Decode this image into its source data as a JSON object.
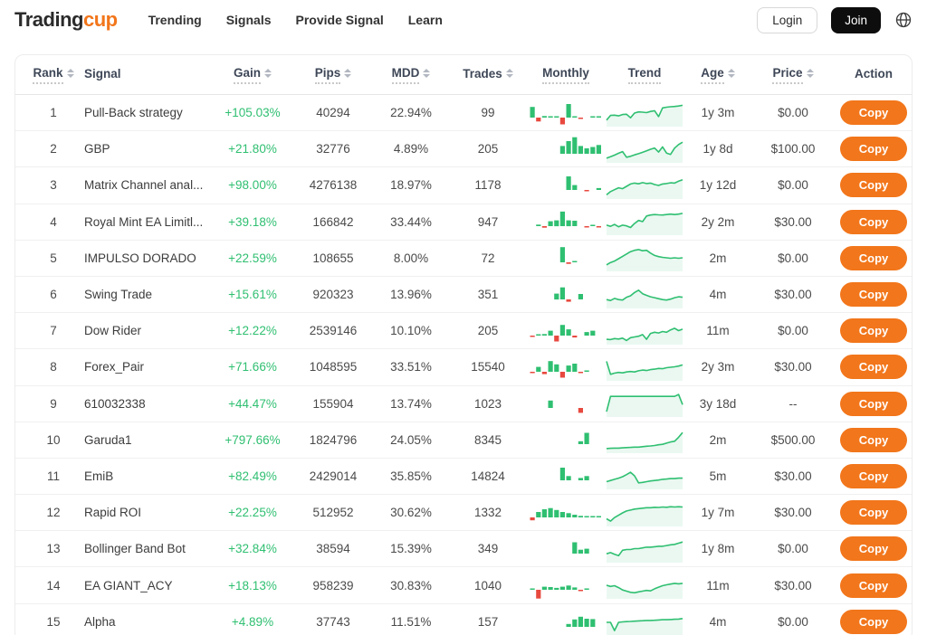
{
  "colors": {
    "accent_orange": "#f2761b",
    "green": "#2fbf71",
    "red": "#e8493f",
    "join_bg": "#0d0d0d"
  },
  "navbar": {
    "brand": {
      "part1": "Trading",
      "part2": "cup"
    },
    "items": [
      {
        "label": "Trending"
      },
      {
        "label": "Signals"
      },
      {
        "label": "Provide Signal"
      },
      {
        "label": "Learn"
      }
    ],
    "login_label": "Login",
    "join_label": "Join"
  },
  "table": {
    "columns": [
      {
        "key": "rank",
        "label": "Rank",
        "sortable": true,
        "underlined": true
      },
      {
        "key": "signal",
        "label": "Signal",
        "sortable": false,
        "underlined": false
      },
      {
        "key": "gain",
        "label": "Gain",
        "sortable": true,
        "underlined": true
      },
      {
        "key": "pips",
        "label": "Pips",
        "sortable": true,
        "underlined": true
      },
      {
        "key": "mdd",
        "label": "MDD",
        "sortable": true,
        "underlined": true
      },
      {
        "key": "trades",
        "label": "Trades",
        "sortable": true,
        "underlined": false
      },
      {
        "key": "monthly",
        "label": "Monthly",
        "sortable": false,
        "underlined": true
      },
      {
        "key": "trend",
        "label": "Trend",
        "sortable": false,
        "underlined": true
      },
      {
        "key": "age",
        "label": "Age",
        "sortable": true,
        "underlined": true
      },
      {
        "key": "price",
        "label": "Price",
        "sortable": true,
        "underlined": true
      },
      {
        "key": "action",
        "label": "Action",
        "sortable": false,
        "underlined": false
      }
    ],
    "rows": [
      {
        "rank": "1",
        "signal": "Pull-Back strategy",
        "gain": "+105.03%",
        "pips": "40294",
        "mdd": "22.94%",
        "trades": "99",
        "age": "1y 3m",
        "price": "$0.00",
        "action": "Copy",
        "monthly": [
          55,
          -20,
          8,
          6,
          6,
          -35,
          70,
          6,
          -2,
          0,
          2,
          3
        ],
        "trend": [
          20,
          40,
          41,
          38,
          44,
          45,
          30,
          50,
          55,
          54,
          52,
          57,
          60,
          35,
          72,
          75,
          77,
          78,
          80,
          83
        ]
      },
      {
        "rank": "2",
        "signal": "GBP",
        "gain": "+21.80%",
        "pips": "32776",
        "mdd": "4.89%",
        "trades": "205",
        "age": "1y 8d",
        "price": "$100.00",
        "action": "Copy",
        "monthly": [
          0,
          0,
          0,
          0,
          0,
          40,
          65,
          85,
          40,
          28,
          35,
          45
        ],
        "trend": [
          12,
          18,
          25,
          33,
          40,
          16,
          20,
          26,
          31,
          37,
          43,
          50,
          55,
          38,
          60,
          34,
          28,
          55,
          70,
          80
        ]
      },
      {
        "rank": "3",
        "signal": "Matrix Channel anal...",
        "gain": "+98.00%",
        "pips": "4276138",
        "mdd": "18.97%",
        "trades": "1178",
        "age": "1y 12d",
        "price": "$0.00",
        "action": "Copy",
        "monthly": [
          0,
          0,
          0,
          0,
          0,
          0,
          70,
          25,
          0,
          -6,
          0,
          10
        ],
        "trend": [
          10,
          24,
          32,
          40,
          36,
          46,
          56,
          60,
          57,
          62,
          58,
          60,
          54,
          50,
          56,
          58,
          61,
          60,
          68,
          74
        ]
      },
      {
        "rank": "4",
        "signal": "Royal Mint EA Limitl...",
        "gain": "+39.18%",
        "pips": "166842",
        "mdd": "33.44%",
        "trades": "947",
        "age": "2y 2m",
        "price": "$30.00",
        "action": "Copy",
        "monthly": [
          0,
          8,
          -8,
          25,
          30,
          75,
          30,
          28,
          0,
          -3,
          6,
          -2
        ],
        "trend": [
          35,
          30,
          38,
          28,
          35,
          32,
          25,
          42,
          55,
          50,
          74,
          78,
          80,
          79,
          78,
          80,
          82,
          80,
          82,
          85
        ]
      },
      {
        "rank": "5",
        "signal": "IMPULSO DORADO",
        "gain": "+22.59%",
        "pips": "108655",
        "mdd": "8.00%",
        "trades": "72",
        "age": "2m",
        "price": "$0.00",
        "action": "Copy",
        "monthly": [
          0,
          0,
          0,
          0,
          0,
          78,
          -8,
          6,
          0,
          0,
          0,
          0
        ],
        "trend": [
          20,
          30,
          36,
          46,
          56,
          66,
          76,
          82,
          85,
          80,
          82,
          70,
          60,
          55,
          52,
          50,
          48,
          50,
          48,
          50
        ]
      },
      {
        "rank": "6",
        "signal": "Swing Trade",
        "gain": "+15.61%",
        "pips": "920323",
        "mdd": "13.96%",
        "trades": "351",
        "age": "4m",
        "price": "$30.00",
        "action": "Copy",
        "monthly": [
          0,
          0,
          0,
          0,
          30,
          62,
          -12,
          0,
          28,
          0,
          0,
          0
        ],
        "trend": [
          30,
          26,
          35,
          30,
          28,
          40,
          46,
          60,
          70,
          55,
          48,
          42,
          38,
          34,
          30,
          28,
          32,
          38,
          42,
          40
        ]
      },
      {
        "rank": "7",
        "signal": "Dow Rider",
        "gain": "+12.22%",
        "pips": "2539146",
        "mdd": "10.10%",
        "trades": "205",
        "age": "11m",
        "price": "$0.00",
        "action": "Copy",
        "monthly": [
          -4,
          3,
          8,
          25,
          -30,
          55,
          32,
          -10,
          0,
          18,
          25,
          0
        ],
        "trend": [
          15,
          14,
          18,
          16,
          20,
          10,
          22,
          25,
          28,
          35,
          15,
          40,
          45,
          42,
          48,
          45,
          55,
          62,
          52,
          58
        ]
      },
      {
        "rank": "8",
        "signal": "Forex_Pair",
        "gain": "+71.66%",
        "pips": "1048595",
        "mdd": "33.51%",
        "trades": "15540",
        "age": "2y 3m",
        "price": "$30.00",
        "action": "Copy",
        "monthly": [
          -6,
          25,
          -12,
          55,
          38,
          -30,
          32,
          42,
          -6,
          2,
          0,
          0
        ],
        "trend": [
          75,
          20,
          25,
          28,
          26,
          30,
          32,
          30,
          35,
          38,
          36,
          40,
          42,
          45,
          44,
          48,
          50,
          52,
          55,
          60
        ]
      },
      {
        "rank": "9",
        "signal": "610032338",
        "gain": "+44.47%",
        "pips": "155904",
        "mdd": "13.74%",
        "trades": "1023",
        "age": "3y 18d",
        "price": "--",
        "action": "Copy",
        "monthly": [
          0,
          0,
          0,
          38,
          0,
          0,
          0,
          0,
          -25,
          0,
          0,
          0
        ],
        "trend": [
          15,
          80,
          80,
          80,
          80,
          80,
          80,
          80,
          80,
          80,
          80,
          80,
          80,
          80,
          80,
          80,
          80,
          80,
          88,
          45
        ]
      },
      {
        "rank": "10",
        "signal": "Garuda1",
        "gain": "+797.66%",
        "pips": "1824796",
        "mdd": "24.05%",
        "trades": "8345",
        "age": "2m",
        "price": "$500.00",
        "action": "Copy",
        "monthly": [
          0,
          0,
          0,
          0,
          0,
          0,
          0,
          0,
          15,
          58,
          0,
          0
        ],
        "trend": [
          12,
          13,
          14,
          14,
          15,
          16,
          17,
          18,
          18,
          20,
          22,
          23,
          25,
          28,
          30,
          35,
          40,
          43,
          60,
          80
        ]
      },
      {
        "rank": "11",
        "signal": "EmiB",
        "gain": "+82.49%",
        "pips": "2429014",
        "mdd": "35.85%",
        "trades": "14824",
        "age": "5m",
        "price": "$30.00",
        "action": "Copy",
        "monthly": [
          0,
          0,
          0,
          0,
          0,
          65,
          22,
          0,
          12,
          22,
          0,
          0
        ],
        "trend": [
          25,
          30,
          35,
          40,
          46,
          55,
          65,
          50,
          20,
          22,
          25,
          28,
          30,
          32,
          35,
          36,
          38,
          38,
          40,
          40
        ]
      },
      {
        "rank": "12",
        "signal": "Rapid ROI",
        "gain": "+22.25%",
        "pips": "512952",
        "mdd": "30.62%",
        "trades": "1332",
        "age": "1y 7m",
        "price": "$30.00",
        "action": "Copy",
        "monthly": [
          -15,
          28,
          42,
          48,
          38,
          28,
          22,
          14,
          8,
          5,
          4,
          3
        ],
        "trend": [
          25,
          15,
          30,
          40,
          50,
          58,
          62,
          66,
          68,
          70,
          72,
          72,
          74,
          73,
          75,
          74,
          76,
          75,
          76,
          75
        ]
      },
      {
        "rank": "13",
        "signal": "Bollinger Band Bot",
        "gain": "+32.84%",
        "pips": "38594",
        "mdd": "15.39%",
        "trades": "349",
        "age": "1y 8m",
        "price": "$0.00",
        "action": "Copy",
        "monthly": [
          0,
          0,
          0,
          0,
          0,
          0,
          0,
          58,
          20,
          25,
          0,
          0
        ],
        "trend": [
          30,
          35,
          28,
          22,
          45,
          48,
          48,
          52,
          52,
          55,
          58,
          58,
          60,
          62,
          62,
          65,
          68,
          70,
          75,
          80
        ]
      },
      {
        "rank": "14",
        "signal": "EA GIANT_ACY",
        "gain": "+18.13%",
        "pips": "958239",
        "mdd": "30.83%",
        "trades": "1040",
        "age": "11m",
        "price": "$30.00",
        "action": "Copy",
        "monthly": [
          6,
          -45,
          16,
          14,
          10,
          16,
          22,
          12,
          -4,
          4,
          0,
          0
        ],
        "trend": [
          50,
          45,
          48,
          40,
          30,
          25,
          20,
          18,
          22,
          25,
          28,
          26,
          35,
          42,
          48,
          52,
          55,
          58,
          56,
          58
        ]
      },
      {
        "rank": "15",
        "signal": "Alpha",
        "gain": "+4.89%",
        "pips": "37743",
        "mdd": "11.51%",
        "trades": "157",
        "age": "4m",
        "price": "$0.00",
        "action": "Copy",
        "monthly": [
          0,
          0,
          0,
          0,
          0,
          0,
          15,
          38,
          52,
          42,
          40,
          0
        ],
        "trend": [
          50,
          50,
          15,
          50,
          52,
          53,
          54,
          55,
          56,
          57,
          58,
          58,
          59,
          60,
          61,
          61,
          62,
          63,
          64,
          66
        ]
      }
    ]
  }
}
